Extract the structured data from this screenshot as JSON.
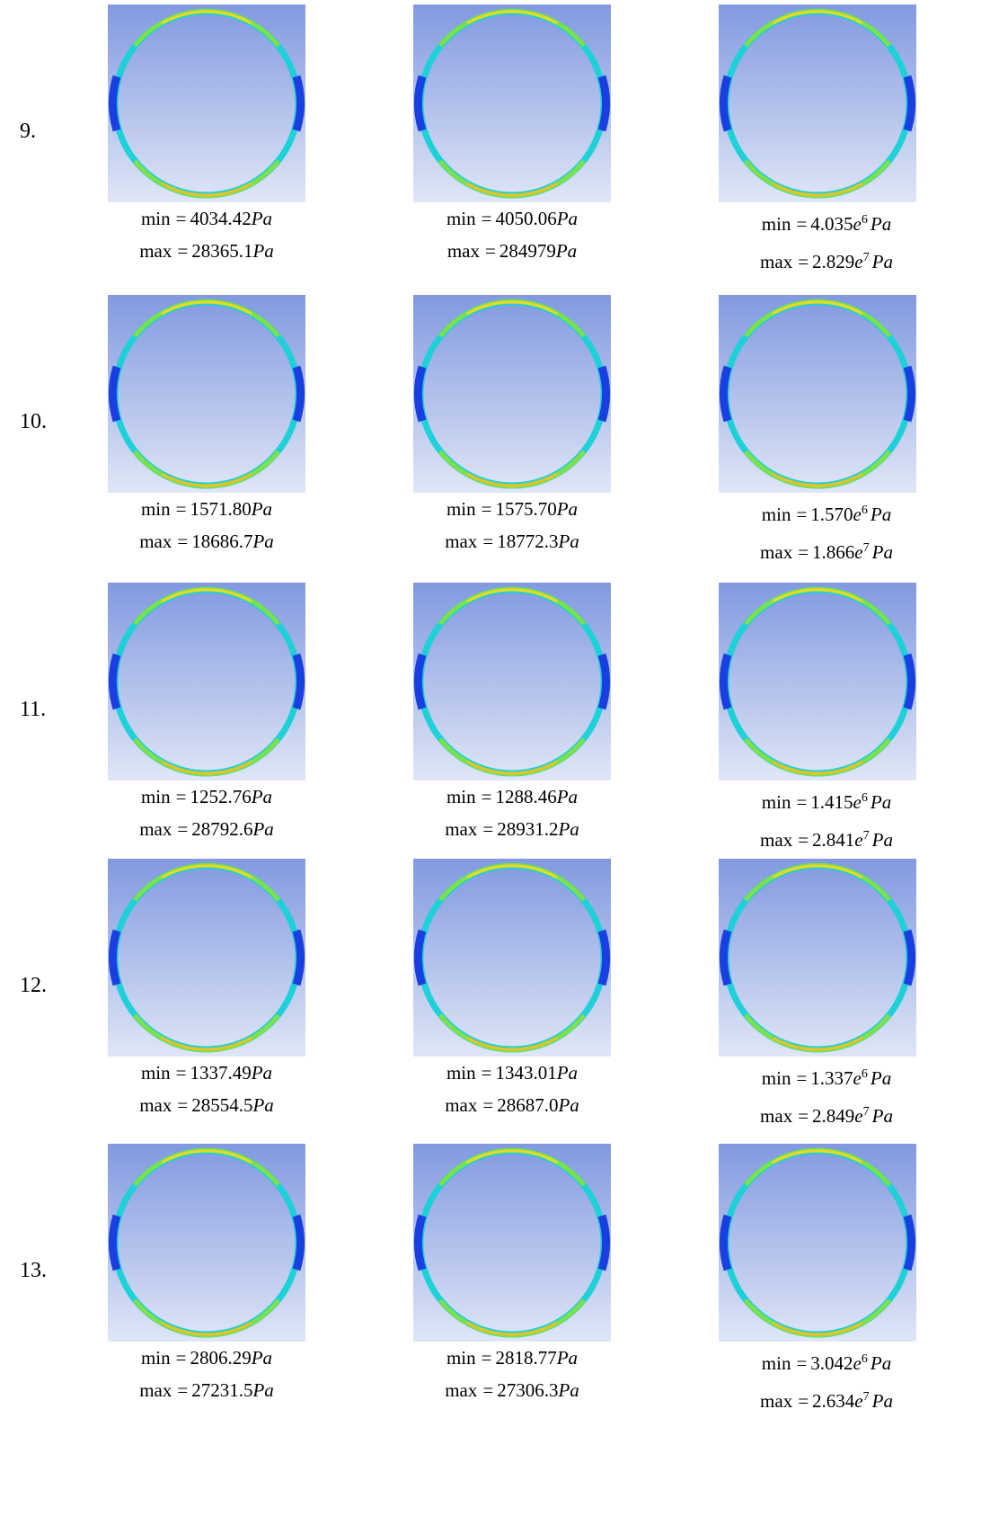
{
  "rows": [
    {
      "label": "9.",
      "cells": [
        {
          "min": {
            "name": "min",
            "eq": "=",
            "num": "4034.42",
            "unit": "Pa"
          },
          "max": {
            "name": "max",
            "eq": "=",
            "num": "28365.1",
            "unit": "Pa"
          }
        },
        {
          "min": {
            "name": "min",
            "eq": "=",
            "num": "4050.06",
            "unit": "Pa"
          },
          "max": {
            "name": "max",
            "eq": "=",
            "num": "284979",
            "unit": "Pa"
          }
        },
        {
          "min": {
            "name": "min",
            "eq": "=",
            "num": "4.035",
            "base": "e",
            "exp": "6",
            "unit": "Pa"
          },
          "max": {
            "name": "max",
            "eq": "=",
            "num": "2.829",
            "base": "e",
            "exp": "7",
            "unit": "Pa"
          }
        }
      ]
    },
    {
      "label": "10.",
      "cells": [
        {
          "min": {
            "name": "min",
            "eq": "=",
            "num": "1571.80",
            "unit": "Pa"
          },
          "max": {
            "name": "max",
            "eq": "=",
            "num": "18686.7",
            "unit": "Pa"
          }
        },
        {
          "min": {
            "name": "min",
            "eq": "=",
            "num": "1575.70",
            "unit": "Pa"
          },
          "max": {
            "name": "max",
            "eq": "=",
            "num": "18772.3",
            "unit": "Pa"
          }
        },
        {
          "min": {
            "name": "min",
            "eq": "=",
            "num": "1.570",
            "base": "e",
            "exp": "6",
            "unit": "Pa"
          },
          "max": {
            "name": "max",
            "eq": "=",
            "num": "1.866",
            "base": "e",
            "exp": "7",
            "unit": "Pa"
          }
        }
      ]
    },
    {
      "label": "11.",
      "cells": [
        {
          "min": {
            "name": "min",
            "eq": "=",
            "num": "1252.76",
            "unit": "Pa"
          },
          "max": {
            "name": "max",
            "eq": "=",
            "num": "28792.6",
            "unit": "Pa"
          }
        },
        {
          "min": {
            "name": "min",
            "eq": "=",
            "num": "1288.46",
            "unit": "Pa"
          },
          "max": {
            "name": "max",
            "eq": "=",
            "num": "28931.2",
            "unit": "Pa"
          }
        },
        {
          "min": {
            "name": "min",
            "eq": "=",
            "num": "1.415",
            "base": "e",
            "exp": "6",
            "unit": "Pa"
          },
          "max": {
            "name": "max",
            "eq": "=",
            "num": "2.841",
            "base": "e",
            "exp": "7",
            "unit": "Pa"
          }
        }
      ]
    },
    {
      "label": "12.",
      "cells": [
        {
          "min": {
            "name": "min",
            "eq": "=",
            "num": "1337.49",
            "unit": "Pa"
          },
          "max": {
            "name": "max",
            "eq": "=",
            "num": "28554.5",
            "unit": "Pa"
          }
        },
        {
          "min": {
            "name": "min",
            "eq": "=",
            "num": "1343.01",
            "unit": "Pa"
          },
          "max": {
            "name": "max",
            "eq": "=",
            "num": "28687.0",
            "unit": "Pa"
          }
        },
        {
          "min": {
            "name": "min",
            "eq": "=",
            "num": "1.337",
            "base": "e",
            "exp": "6",
            "unit": "Pa"
          },
          "max": {
            "name": "max",
            "eq": "=",
            "num": "2.849",
            "base": "e",
            "exp": "7",
            "unit": "Pa"
          }
        }
      ]
    },
    {
      "label": "13.",
      "cells": [
        {
          "min": {
            "name": "min",
            "eq": "=",
            "num": "2806.29",
            "unit": "Pa"
          },
          "max": {
            "name": "max",
            "eq": "=",
            "num": "27231.5",
            "unit": "Pa"
          }
        },
        {
          "min": {
            "name": "min",
            "eq": "=",
            "num": "2818.77",
            "unit": "Pa"
          },
          "max": {
            "name": "max",
            "eq": "=",
            "num": "27306.3",
            "unit": "Pa"
          }
        },
        {
          "min": {
            "name": "min",
            "eq": "=",
            "num": "3.042",
            "base": "e",
            "exp": "6",
            "unit": "Pa"
          },
          "max": {
            "name": "max",
            "eq": "=",
            "num": "2.634",
            "base": "e",
            "exp": "7",
            "unit": "Pa"
          }
        }
      ]
    }
  ]
}
